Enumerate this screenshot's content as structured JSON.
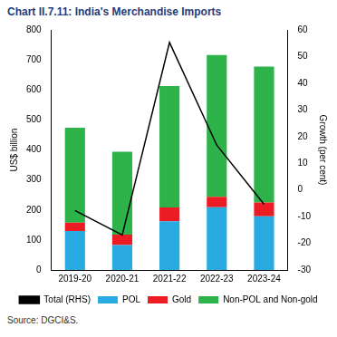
{
  "chart_data": {
    "type": "bar",
    "title": "Chart II.7.11: India's Merchandise Imports",
    "source": "Source: DGCI&S.",
    "categories": [
      "2019-20",
      "2020-21",
      "2021-22",
      "2022-23",
      "2023-24"
    ],
    "stacked": true,
    "grid": false,
    "legend": "bottom",
    "y_label": "US$ billion",
    "y2_label": "Growth (per cent)",
    "ylim": [
      0,
      800
    ],
    "yticks": [
      0,
      100,
      200,
      300,
      400,
      500,
      600,
      700,
      800
    ],
    "y2lim": [
      -30,
      60
    ],
    "y2ticks": [
      -30,
      -20,
      -10,
      0,
      10,
      20,
      30,
      40,
      50,
      60
    ],
    "series": [
      {
        "name": "POL",
        "color": "#29aae1",
        "values": [
          130,
          83,
          162,
          209,
          179
        ]
      },
      {
        "name": "Gold",
        "color": "#ed1c24",
        "values": [
          28,
          35,
          46,
          35,
          46
        ]
      },
      {
        "name": "Non-POL and Non-gold",
        "color": "#2db34a",
        "values": [
          316,
          276,
          405,
          472,
          453
        ]
      },
      {
        "name": "Total (RHS)",
        "color": "#000000",
        "type": "line",
        "axis": "y2",
        "values": [
          -7.7,
          -16.9,
          55.3,
          16.8,
          -5.4
        ]
      }
    ]
  }
}
